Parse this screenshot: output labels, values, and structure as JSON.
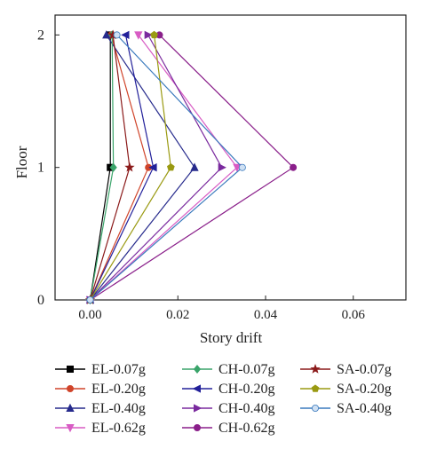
{
  "chart_data": {
    "type": "line",
    "title": "",
    "xlabel": "Story drift",
    "ylabel": "Floor",
    "xlim": [
      -0.008,
      0.072
    ],
    "ylim": [
      0,
      2.15
    ],
    "x_ticks": [
      "0.00",
      "0.02",
      "0.04",
      "0.06"
    ],
    "x_tick_values": [
      0.0,
      0.02,
      0.04,
      0.06
    ],
    "y_ticks": [
      "0",
      "1",
      "2"
    ],
    "y_tick_values": [
      0,
      1,
      2
    ],
    "grid": false,
    "legend_position": "bottom",
    "series": [
      {
        "name": "EL-0.07g",
        "color": "#000000",
        "marker": "square",
        "x": [
          0.0,
          0.0046,
          0.0046
        ],
        "y": [
          0,
          1,
          2
        ]
      },
      {
        "name": "EL-0.20g",
        "color": "#d0442a",
        "marker": "circle",
        "x": [
          0.0,
          0.0133,
          0.0048
        ],
        "y": [
          0,
          1,
          2
        ]
      },
      {
        "name": "EL-0.40g",
        "color": "#262a8c",
        "marker": "triangle-up",
        "x": [
          0.0,
          0.0238,
          0.0037
        ],
        "y": [
          0,
          1,
          2
        ]
      },
      {
        "name": "EL-0.62g",
        "color": "#d85cc4",
        "marker": "triangle-down",
        "x": [
          0.0,
          0.0335,
          0.011
        ],
        "y": [
          0,
          1,
          2
        ]
      },
      {
        "name": "CH-0.07g",
        "color": "#3aa46a",
        "marker": "diamond",
        "x": [
          0.0,
          0.0053,
          0.005
        ],
        "y": [
          0,
          1,
          2
        ]
      },
      {
        "name": "CH-0.20g",
        "color": "#22209a",
        "marker": "triangle-left",
        "x": [
          0.0,
          0.0144,
          0.0081
        ],
        "y": [
          0,
          1,
          2
        ]
      },
      {
        "name": "CH-0.40g",
        "color": "#7a2a9e",
        "marker": "triangle-right",
        "x": [
          0.0,
          0.03,
          0.0132
        ],
        "y": [
          0,
          1,
          2
        ]
      },
      {
        "name": "CH-0.62g",
        "color": "#8a1f8a",
        "marker": "circle",
        "x": [
          0.0,
          0.0463,
          0.0158
        ],
        "y": [
          0,
          1,
          2
        ]
      },
      {
        "name": "SA-0.07g",
        "color": "#8b1a1a",
        "marker": "star",
        "x": [
          0.0,
          0.009,
          0.0052
        ],
        "y": [
          0,
          1,
          2
        ]
      },
      {
        "name": "SA-0.20g",
        "color": "#9a9a12",
        "marker": "pentagon",
        "x": [
          0.0,
          0.0184,
          0.0146
        ],
        "y": [
          0,
          1,
          2
        ]
      },
      {
        "name": "SA-0.40g",
        "color": "#3a7abd",
        "marker": "circle-half",
        "x": [
          0.0,
          0.0347,
          0.0061
        ],
        "y": [
          0,
          1,
          2
        ]
      }
    ],
    "legend_columns": [
      [
        "EL-0.07g",
        "EL-0.20g",
        "EL-0.40g",
        "EL-0.62g"
      ],
      [
        "CH-0.07g",
        "CH-0.20g",
        "CH-0.40g",
        "CH-0.62g"
      ],
      [
        "SA-0.07g",
        "SA-0.20g",
        "SA-0.40g"
      ]
    ]
  }
}
